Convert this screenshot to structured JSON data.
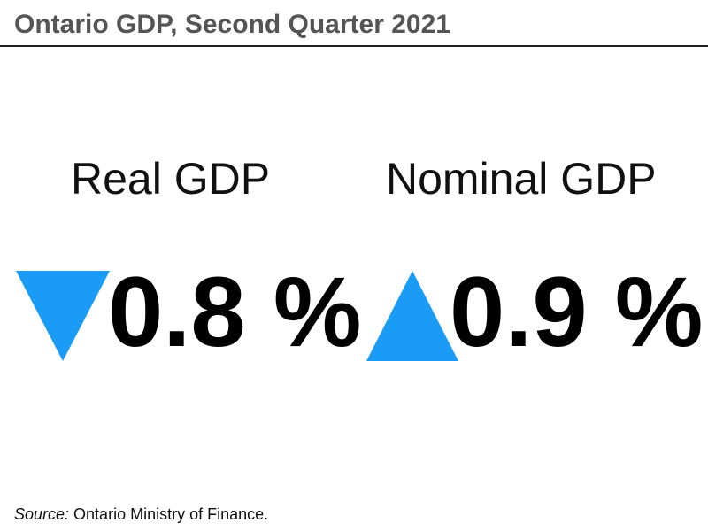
{
  "title": "Ontario GDP, Second Quarter 2021",
  "metrics": [
    {
      "label": "Real GDP",
      "direction_icon": "triangle-down-icon",
      "value": "0.8 %",
      "change_percent": -0.8
    },
    {
      "label": "Nominal GDP",
      "direction_icon": "triangle-up-icon",
      "value": "0.9 %",
      "change_percent": 0.9
    }
  ],
  "source": {
    "prefix": "Source:",
    "text": " Ontario Ministry of Finance."
  },
  "colors": {
    "title": "#555555",
    "indicator": "#1a9bf5",
    "value": "#000000"
  }
}
